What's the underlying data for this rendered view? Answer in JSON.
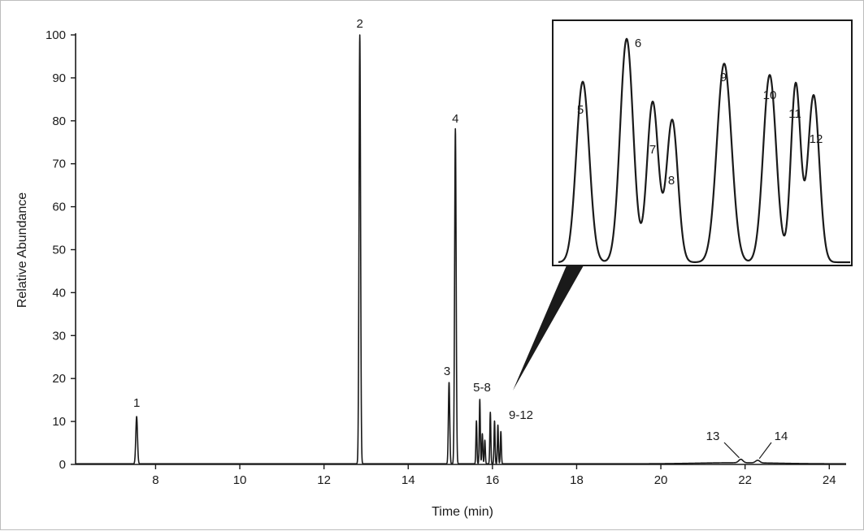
{
  "chart_data": {
    "type": "line",
    "title": "",
    "xlabel": "Time (min)",
    "ylabel": "Relative Abundance",
    "xlim": [
      6.1,
      24.4
    ],
    "ylim": [
      0,
      100
    ],
    "x_ticks": [
      "8",
      "10",
      "12",
      "14",
      "16",
      "18",
      "20",
      "22",
      "24"
    ],
    "y_ticks": [
      "0",
      "10",
      "20",
      "30",
      "40",
      "50",
      "60",
      "70",
      "80",
      "90",
      "100"
    ],
    "grid": false,
    "legend": "none",
    "peaks": [
      {
        "label": "1",
        "time": 7.55,
        "abundance": 11
      },
      {
        "label": "2",
        "time": 12.85,
        "abundance": 100
      },
      {
        "label": "3",
        "time": 14.97,
        "abundance": 19
      },
      {
        "label": "4",
        "time": 15.12,
        "abundance": 78
      },
      {
        "label": "5",
        "time": 15.62,
        "abundance": 10
      },
      {
        "label": "6",
        "time": 15.7,
        "abundance": 15
      },
      {
        "label": "7",
        "time": 15.76,
        "abundance": 7
      },
      {
        "label": "8",
        "time": 15.82,
        "abundance": 5.5
      },
      {
        "label": "9",
        "time": 15.95,
        "abundance": 12
      },
      {
        "label": "10",
        "time": 16.05,
        "abundance": 10
      },
      {
        "label": "11",
        "time": 16.13,
        "abundance": 9
      },
      {
        "label": "12",
        "time": 16.2,
        "abundance": 7.5
      },
      {
        "label": "13",
        "time": 21.9,
        "abundance": 0.8
      },
      {
        "label": "14",
        "time": 22.3,
        "abundance": 0.6
      }
    ],
    "annotations": [
      "1",
      "2",
      "3",
      "4",
      "5-8",
      "9-12",
      "13",
      "14"
    ],
    "inset": {
      "description": "zoom of peaks 5-12",
      "labels": [
        "5",
        "6",
        "7",
        "8",
        "9",
        "10",
        "11",
        "12"
      ],
      "relative_heights": [
        0.8,
        0.99,
        0.71,
        0.63,
        0.88,
        0.83,
        0.79,
        0.74
      ]
    }
  }
}
